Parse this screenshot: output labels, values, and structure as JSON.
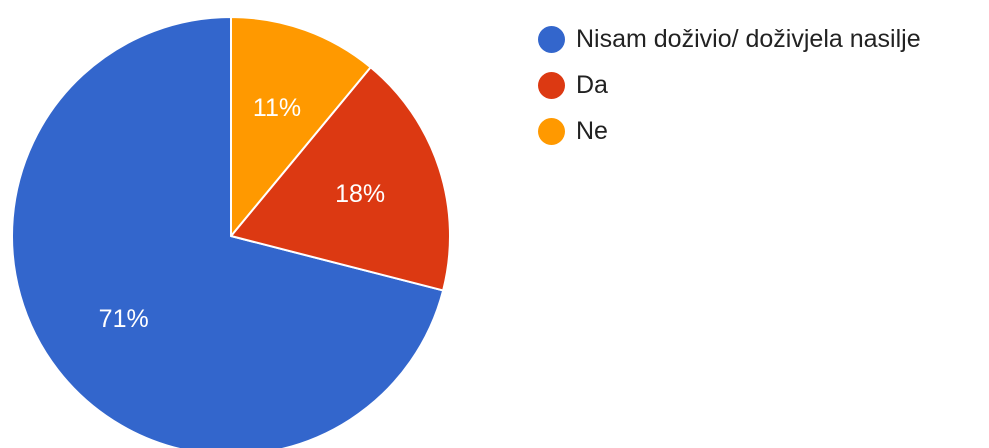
{
  "chart_data": {
    "type": "pie",
    "title": "",
    "start_angle_deg": 90,
    "direction": "counterclockwise",
    "slices": [
      {
        "label": "Nisam doživio/ doživjela nasilje",
        "value": 71,
        "display": "71%",
        "color": "#3366cc"
      },
      {
        "label": "Da",
        "value": 18,
        "display": "18%",
        "color": "#dc3912"
      },
      {
        "label": "Ne",
        "value": 11,
        "display": "11%",
        "color": "#ff9900"
      }
    ],
    "legend": {
      "position": "right",
      "items": [
        {
          "label": "Nisam doživio/ doživjela nasilje",
          "color": "#3366cc"
        },
        {
          "label": "Da",
          "color": "#dc3912"
        },
        {
          "label": "Ne",
          "color": "#ff9900"
        }
      ]
    }
  }
}
